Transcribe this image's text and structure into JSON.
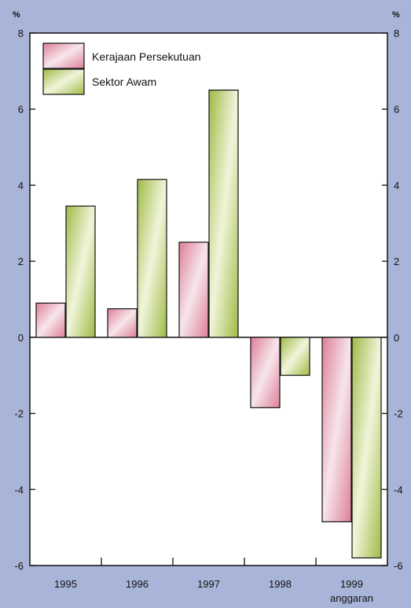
{
  "chart_data": {
    "type": "bar",
    "categories": [
      "1995",
      "1996",
      "1997",
      "1998",
      "1999"
    ],
    "category_sublabels": [
      "",
      "",
      "",
      "",
      "anggaran"
    ],
    "series": [
      {
        "name": "Kerajaan Persekutuan",
        "values": [
          0.9,
          0.75,
          2.5,
          -1.85,
          -4.85
        ]
      },
      {
        "name": "Sektor Awam",
        "values": [
          3.45,
          4.15,
          6.5,
          -1.0,
          -5.8
        ]
      }
    ],
    "ylim": [
      -6,
      8
    ],
    "yticks": [
      -6,
      -4,
      -2,
      0,
      2,
      4,
      6,
      8
    ],
    "y_unit_left": "%",
    "y_unit_right": "%",
    "legend_position": "top-left",
    "grid": false,
    "colors": {
      "series_1": "#e7a9b9",
      "series_2": "#b8cc6a",
      "plot_background": "#ffffff",
      "page_background": "#a9b5d8"
    }
  }
}
